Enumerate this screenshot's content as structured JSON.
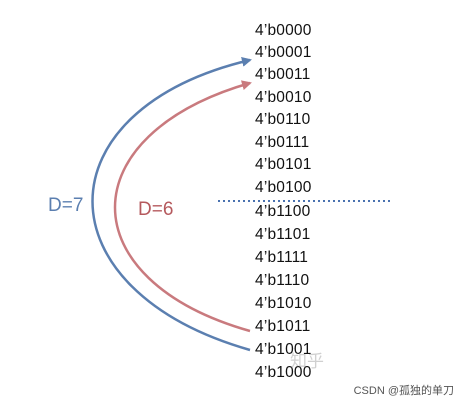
{
  "codes": [
    "4’b0000",
    "4’b0001",
    "4’b0011",
    "4’b0010",
    "4’b0110",
    "4’b0111",
    "4’b0101",
    "4’b0100",
    "4’b1100",
    "4’b1101",
    "4’b1111",
    "4’b1110",
    "4’b1010",
    "4’b1011",
    "4’b1001",
    "4’b1000"
  ],
  "labels": {
    "blue_distance": "D=7",
    "red_distance": "D=6"
  },
  "colors": {
    "blue": "#5b7fb0",
    "red": "#c97a7e",
    "divider": "#4a72b0",
    "text": "#111111"
  },
  "watermarks": {
    "zhihu": "知乎",
    "csdn": "CSDN @孤独的单刀"
  }
}
